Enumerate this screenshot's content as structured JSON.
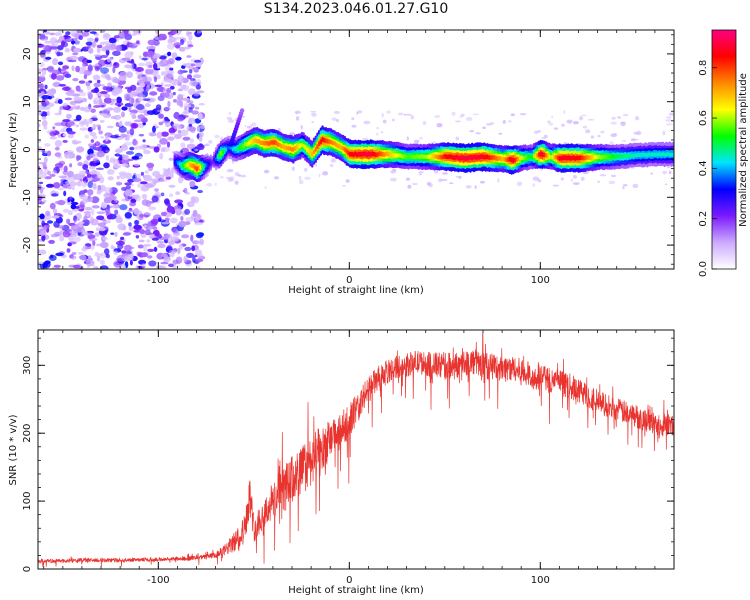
{
  "title": "S134.2023.046.01.27.G10",
  "colors": {
    "snr_line": "#e8332e",
    "axis": "#111111",
    "background": "#ffffff"
  },
  "chart_data": [
    {
      "type": "heatmap",
      "title": "",
      "xlabel": "Height of straight line (km)",
      "ylabel": "Frequency (Hz)",
      "xlim": [
        -163,
        170
      ],
      "ylim": [
        -25,
        25
      ],
      "xticks": [
        -100,
        0,
        100
      ],
      "xtick_labels": [
        "-100",
        "0",
        "100"
      ],
      "yticks": [
        -20,
        -10,
        0,
        10,
        20
      ],
      "ytick_labels": [
        "-20",
        "-10",
        "0",
        "10",
        "20"
      ],
      "grid": false,
      "noise_region_x": [
        -163,
        -77
      ],
      "ridge": {
        "x": [
          -92,
          -88,
          -84,
          -80,
          -76,
          -72,
          -68,
          -64,
          -60,
          -55,
          -50,
          -45,
          -40,
          -35,
          -30,
          -25,
          -20,
          -15,
          -10,
          -5,
          0,
          10,
          20,
          30,
          40,
          50,
          60,
          70,
          80,
          85,
          90,
          95,
          100,
          105,
          110,
          120,
          130,
          140,
          150,
          160,
          170
        ],
        "freq": [
          -2.5,
          -3.5,
          -3.2,
          -4.0,
          -3.5,
          -2.5,
          -1.0,
          0.5,
          0,
          1.0,
          2.0,
          1.2,
          1.5,
          0.5,
          0,
          1.0,
          -1.0,
          2.0,
          1.5,
          0.5,
          -1.0,
          -1.0,
          -1.0,
          -1.5,
          -1.5,
          -1.5,
          -1.8,
          -1.5,
          -2.0,
          -2.2,
          -1.8,
          -1.5,
          -1.0,
          -1.5,
          -1.8,
          -1.8,
          -1.6,
          -1.5,
          -1.2,
          -1.0,
          -1.0
        ],
        "amplitude": [
          0.3,
          0.5,
          0.7,
          0.8,
          0.4,
          0.2,
          0.6,
          0.35,
          0.45,
          0.6,
          0.7,
          0.75,
          0.8,
          0.7,
          0.75,
          0.6,
          0.7,
          0.85,
          0.75,
          0.7,
          0.85,
          0.9,
          0.7,
          0.55,
          0.6,
          0.85,
          0.9,
          0.88,
          0.7,
          0.9,
          0.6,
          0.5,
          0.92,
          0.6,
          0.88,
          0.85,
          0.6,
          0.5,
          0.45,
          0.45,
          0.45
        ]
      },
      "colorbar": {
        "label": "Normalized spectral amplitude",
        "range": [
          0,
          0.95
        ],
        "ticks": [
          0.0,
          0.2,
          0.4,
          0.6,
          0.8
        ],
        "tick_labels": [
          "0.0",
          "0.2",
          "0.4",
          "0.6",
          "0.8"
        ],
        "colormap": [
          "#ffffff",
          "#ccaaff",
          "#7a1aff",
          "#0000ff",
          "#00e5ff",
          "#00ff00",
          "#ffff00",
          "#ff8800",
          "#ff0000",
          "#ff0080"
        ]
      }
    },
    {
      "type": "line",
      "title": "",
      "xlabel": "Height of straight line (km)",
      "ylabel": "SNR (10 * v/v)",
      "xlim": [
        -163,
        170
      ],
      "ylim": [
        0,
        352
      ],
      "xticks": [
        -100,
        0,
        100
      ],
      "xtick_labels": [
        "-100",
        "0",
        "100"
      ],
      "yticks": [
        0,
        100,
        200,
        300
      ],
      "ytick_labels": [
        "0",
        "100",
        "200",
        "300"
      ],
      "grid": false,
      "series": [
        {
          "x": [
            -163,
            -150,
            -140,
            -130,
            -120,
            -110,
            -100,
            -90,
            -80,
            -75,
            -70,
            -65,
            -60,
            -55,
            -52,
            -50,
            -45,
            -40,
            -35,
            -30,
            -25,
            -20,
            -15,
            -10,
            -5,
            0,
            5,
            10,
            15,
            20,
            25,
            30,
            35,
            40,
            45,
            50,
            55,
            60,
            65,
            70,
            75,
            80,
            85,
            90,
            95,
            100,
            105,
            110,
            115,
            120,
            125,
            130,
            135,
            140,
            145,
            150,
            155,
            160,
            165,
            170
          ],
          "values": [
            12,
            12,
            13,
            13,
            13,
            14,
            14,
            15,
            16,
            18,
            20,
            28,
            40,
            60,
            110,
            60,
            80,
            100,
            115,
            130,
            145,
            160,
            175,
            190,
            200,
            220,
            240,
            265,
            280,
            290,
            298,
            300,
            305,
            302,
            300,
            300,
            298,
            305,
            305,
            300,
            298,
            296,
            295,
            290,
            285,
            282,
            278,
            275,
            270,
            262,
            255,
            248,
            240,
            235,
            230,
            225,
            220,
            215,
            212,
            210
          ],
          "noise_amplitude": [
            6,
            6,
            6,
            6,
            6,
            6,
            6,
            6,
            7,
            8,
            10,
            18,
            30,
            40,
            60,
            40,
            45,
            60,
            70,
            75,
            75,
            75,
            70,
            60,
            55,
            50,
            45,
            40,
            38,
            35,
            35,
            35,
            35,
            35,
            40,
            40,
            40,
            40,
            40,
            40,
            40,
            40,
            40,
            40,
            40,
            38,
            38,
            38,
            38,
            38,
            38,
            35,
            35,
            35,
            35,
            35,
            35,
            35,
            35,
            35
          ]
        }
      ]
    }
  ]
}
